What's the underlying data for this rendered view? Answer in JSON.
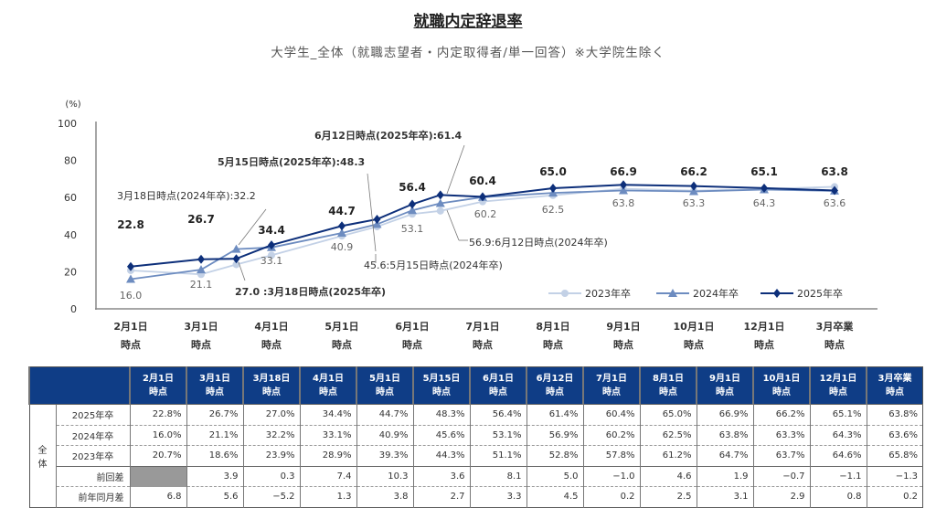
{
  "title": "就職内定辞退率",
  "subtitle": "大学生_全体（就職志望者・内定取得者/単一回答）※大学院生除く",
  "chart_data": {
    "type": "line",
    "ylabel": "(%)",
    "ylim": [
      0,
      100
    ],
    "yticks": [
      "0",
      "20",
      "40",
      "60",
      "80",
      "100"
    ],
    "categories": [
      "2月1日|時点",
      "3月1日|時点",
      "4月1日|時点",
      "5月1日|時点",
      "6月1日|時点",
      "7月1日|時点",
      "8月1日|時点",
      "9月1日|時点",
      "10月1日|時点",
      "12月1日|時点",
      "3月卒業|時点"
    ],
    "x": [
      0,
      1,
      1.5,
      2,
      3,
      3.5,
      4,
      4.4,
      5,
      6,
      7,
      8,
      9,
      10
    ],
    "series": [
      {
        "name": "2023年卒",
        "color": "#c3d1e6",
        "values": [
          20.7,
          18.6,
          23.9,
          28.9,
          39.3,
          44.3,
          51.1,
          52.8,
          57.8,
          61.2,
          64.7,
          63.7,
          64.6,
          65.8
        ]
      },
      {
        "name": "2024年卒",
        "color": "#6d8cc0",
        "values": [
          16.0,
          21.1,
          32.2,
          33.1,
          40.9,
          45.6,
          53.1,
          56.9,
          60.2,
          62.5,
          63.8,
          63.3,
          64.3,
          63.6
        ]
      },
      {
        "name": "2025年卒",
        "color": "#0d2f7a",
        "values": [
          22.8,
          26.7,
          27.0,
          34.4,
          44.7,
          48.3,
          56.4,
          61.4,
          60.4,
          65.0,
          66.9,
          66.2,
          65.1,
          63.8
        ]
      }
    ],
    "labels_2025": [
      "22.8",
      "26.7",
      "34.4",
      "44.7",
      "56.4",
      "60.4",
      "65.0",
      "66.9",
      "66.2",
      "65.1",
      "63.8"
    ],
    "labels_2024": [
      "16.0",
      "21.1",
      "33.1",
      "40.9",
      "53.1",
      "60.2",
      "62.5",
      "63.8",
      "63.3",
      "64.3",
      "63.6"
    ],
    "annotations": [
      "3月18日時点(2024年卒):32.2",
      "5月15日時点(2025年卒):48.3",
      "6月12日時点(2025年卒):61.4",
      "27.0 :3月18日時点(2025年卒)",
      "45.6:5月15日時点(2024年卒)",
      "56.9:6月12日時点(2024年卒)"
    ],
    "legend": "bottom-right"
  },
  "table": {
    "headers": [
      "2月1日|時点",
      "3月1日|時点",
      "3月18日|時点",
      "4月1日|時点",
      "5月1日|時点",
      "5月15日|時点",
      "6月1日|時点",
      "6月12日|時点",
      "7月1日|時点",
      "8月1日|時点",
      "9月1日|時点",
      "10月1日|時点",
      "12月1日|時点",
      "3月卒業|時点"
    ],
    "section": "全|体",
    "rows": [
      {
        "label": "2025年卒",
        "cells": [
          "22.8%",
          "26.7%",
          "27.0%",
          "34.4%",
          "44.7%",
          "48.3%",
          "56.4%",
          "61.4%",
          "60.4%",
          "65.0%",
          "66.9%",
          "66.2%",
          "65.1%",
          "63.8%"
        ]
      },
      {
        "label": "2024年卒",
        "cells": [
          "16.0%",
          "21.1%",
          "32.2%",
          "33.1%",
          "40.9%",
          "45.6%",
          "53.1%",
          "56.9%",
          "60.2%",
          "62.5%",
          "63.8%",
          "63.3%",
          "64.3%",
          "63.6%"
        ]
      },
      {
        "label": "2023年卒",
        "cells": [
          "20.7%",
          "18.6%",
          "23.9%",
          "28.9%",
          "39.3%",
          "44.3%",
          "51.1%",
          "52.8%",
          "57.8%",
          "61.2%",
          "64.7%",
          "63.7%",
          "64.6%",
          "65.8%"
        ]
      },
      {
        "label": "前回差",
        "cells": [
          "",
          "3.9",
          "0.3",
          "7.4",
          "10.3",
          "3.6",
          "8.1",
          "5.0",
          "−1.0",
          "4.6",
          "1.9",
          "−0.7",
          "−1.1",
          "−1.3"
        ]
      },
      {
        "label": "前年同月差",
        "cells": [
          "6.8",
          "5.6",
          "−5.2",
          "1.3",
          "3.8",
          "2.7",
          "3.3",
          "4.5",
          "0.2",
          "2.5",
          "3.1",
          "2.9",
          "0.8",
          "0.2"
        ]
      }
    ]
  }
}
